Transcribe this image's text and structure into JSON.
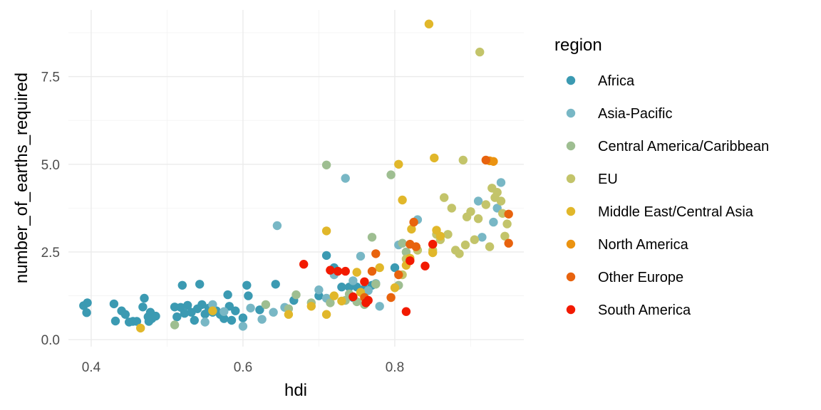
{
  "chart_data": {
    "type": "scatter",
    "title": "",
    "xlabel": "hdi",
    "ylabel": "number_of_earths_required",
    "xlim": [
      0.37,
      0.97
    ],
    "ylim": [
      -0.2,
      9.4
    ],
    "x_ticks": [
      0.4,
      0.6,
      0.8
    ],
    "x_tick_labels": [
      "0.4",
      "0.6",
      "0.8"
    ],
    "y_ticks": [
      0.0,
      2.5,
      5.0,
      7.5
    ],
    "y_tick_labels": [
      "0.0",
      "2.5",
      "5.0",
      "7.5"
    ],
    "grid": true,
    "legend": {
      "title": "region",
      "position": "right"
    },
    "series": [
      {
        "name": "Africa",
        "color": "#3b9ab2",
        "points": [
          [
            0.39,
            0.97
          ],
          [
            0.395,
            1.05
          ],
          [
            0.394,
            0.77
          ],
          [
            0.43,
            1.02
          ],
          [
            0.432,
            0.53
          ],
          [
            0.44,
            0.82
          ],
          [
            0.445,
            0.72
          ],
          [
            0.45,
            0.5
          ],
          [
            0.455,
            0.52
          ],
          [
            0.46,
            0.52
          ],
          [
            0.468,
            0.93
          ],
          [
            0.47,
            1.18
          ],
          [
            0.475,
            0.65
          ],
          [
            0.476,
            0.52
          ],
          [
            0.478,
            0.78
          ],
          [
            0.48,
            0.6
          ],
          [
            0.485,
            0.67
          ],
          [
            0.51,
            0.93
          ],
          [
            0.513,
            0.65
          ],
          [
            0.518,
            0.92
          ],
          [
            0.52,
            1.55
          ],
          [
            0.523,
            0.75
          ],
          [
            0.527,
            0.98
          ],
          [
            0.532,
            0.78
          ],
          [
            0.536,
            0.55
          ],
          [
            0.54,
            0.88
          ],
          [
            0.543,
            1.58
          ],
          [
            0.546,
            1.0
          ],
          [
            0.55,
            0.73
          ],
          [
            0.555,
            0.9
          ],
          [
            0.56,
            0.78
          ],
          [
            0.565,
            0.82
          ],
          [
            0.57,
            0.72
          ],
          [
            0.575,
            0.6
          ],
          [
            0.58,
            1.28
          ],
          [
            0.582,
            0.95
          ],
          [
            0.585,
            0.55
          ],
          [
            0.59,
            0.82
          ],
          [
            0.6,
            0.62
          ],
          [
            0.605,
            1.55
          ],
          [
            0.607,
            1.25
          ],
          [
            0.622,
            0.85
          ],
          [
            0.643,
            1.58
          ],
          [
            0.667,
            1.12
          ],
          [
            0.7,
            1.25
          ],
          [
            0.71,
            2.4
          ],
          [
            0.72,
            2.05
          ],
          [
            0.73,
            1.5
          ],
          [
            0.74,
            1.5
          ],
          [
            0.745,
            1.2
          ],
          [
            0.75,
            1.5
          ],
          [
            0.76,
            1.45
          ],
          [
            0.77,
            1.55
          ],
          [
            0.8,
            2.05
          ]
        ]
      },
      {
        "name": "Asia-Pacific",
        "color": "#78b7c5",
        "points": [
          [
            0.55,
            0.5
          ],
          [
            0.56,
            1.0
          ],
          [
            0.575,
            0.8
          ],
          [
            0.6,
            0.38
          ],
          [
            0.61,
            0.9
          ],
          [
            0.625,
            0.58
          ],
          [
            0.64,
            0.78
          ],
          [
            0.645,
            3.25
          ],
          [
            0.655,
            0.92
          ],
          [
            0.7,
            1.42
          ],
          [
            0.71,
            1.18
          ],
          [
            0.72,
            1.85
          ],
          [
            0.735,
            4.6
          ],
          [
            0.745,
            1.68
          ],
          [
            0.755,
            2.38
          ],
          [
            0.765,
            1.4
          ],
          [
            0.775,
            1.6
          ],
          [
            0.78,
            0.95
          ],
          [
            0.805,
            2.7
          ],
          [
            0.83,
            3.42
          ],
          [
            0.91,
            3.95
          ],
          [
            0.915,
            2.92
          ],
          [
            0.93,
            3.35
          ],
          [
            0.935,
            3.75
          ],
          [
            0.94,
            4.48
          ]
        ]
      },
      {
        "name": "Central America/Caribbean",
        "color": "#9ebe91",
        "points": [
          [
            0.51,
            0.42
          ],
          [
            0.63,
            1.0
          ],
          [
            0.66,
            0.88
          ],
          [
            0.67,
            1.28
          ],
          [
            0.69,
            1.05
          ],
          [
            0.71,
            4.98
          ],
          [
            0.715,
            1.05
          ],
          [
            0.735,
            1.12
          ],
          [
            0.74,
            1.3
          ],
          [
            0.75,
            1.08
          ],
          [
            0.76,
            1.0
          ],
          [
            0.77,
            2.92
          ],
          [
            0.775,
            1.58
          ],
          [
            0.795,
            4.7
          ],
          [
            0.805,
            1.55
          ],
          [
            0.81,
            2.75
          ],
          [
            0.815,
            2.5
          ]
        ]
      },
      {
        "name": "EU",
        "color": "#c3c46a",
        "points": [
          [
            0.81,
            1.85
          ],
          [
            0.815,
            2.3
          ],
          [
            0.82,
            2.25
          ],
          [
            0.83,
            2.55
          ],
          [
            0.85,
            2.55
          ],
          [
            0.855,
            3.0
          ],
          [
            0.86,
            2.85
          ],
          [
            0.865,
            4.05
          ],
          [
            0.87,
            3.0
          ],
          [
            0.875,
            3.75
          ],
          [
            0.88,
            2.55
          ],
          [
            0.885,
            2.45
          ],
          [
            0.89,
            5.12
          ],
          [
            0.893,
            2.7
          ],
          [
            0.895,
            3.5
          ],
          [
            0.9,
            3.65
          ],
          [
            0.905,
            2.85
          ],
          [
            0.91,
            3.45
          ],
          [
            0.912,
            8.2
          ],
          [
            0.92,
            3.85
          ],
          [
            0.925,
            2.65
          ],
          [
            0.928,
            4.32
          ],
          [
            0.932,
            4.05
          ],
          [
            0.935,
            4.2
          ],
          [
            0.94,
            3.95
          ],
          [
            0.942,
            3.6
          ],
          [
            0.945,
            2.95
          ],
          [
            0.948,
            3.3
          ]
        ]
      },
      {
        "name": "Middle East/Central Asia",
        "color": "#e1b72a",
        "points": [
          [
            0.465,
            0.33
          ],
          [
            0.56,
            0.82
          ],
          [
            0.66,
            0.72
          ],
          [
            0.69,
            0.95
          ],
          [
            0.71,
            0.72
          ],
          [
            0.71,
            3.1
          ],
          [
            0.72,
            1.25
          ],
          [
            0.73,
            1.1
          ],
          [
            0.75,
            1.92
          ],
          [
            0.755,
            1.35
          ],
          [
            0.78,
            2.05
          ],
          [
            0.8,
            1.48
          ],
          [
            0.805,
            5.0
          ],
          [
            0.81,
            3.98
          ],
          [
            0.815,
            2.12
          ],
          [
            0.82,
            2.32
          ],
          [
            0.822,
            3.15
          ],
          [
            0.845,
            9.0
          ],
          [
            0.85,
            2.48
          ],
          [
            0.852,
            5.18
          ],
          [
            0.855,
            3.12
          ],
          [
            0.86,
            2.95
          ]
        ]
      },
      {
        "name": "North America",
        "color": "#eb9310",
        "points": [
          [
            0.925,
            5.1
          ],
          [
            0.93,
            5.08
          ]
        ]
      },
      {
        "name": "Other Europe",
        "color": "#e8630e",
        "points": [
          [
            0.76,
            1.2
          ],
          [
            0.77,
            1.95
          ],
          [
            0.775,
            2.45
          ],
          [
            0.795,
            1.2
          ],
          [
            0.805,
            1.85
          ],
          [
            0.82,
            2.72
          ],
          [
            0.825,
            3.35
          ],
          [
            0.828,
            2.65
          ],
          [
            0.92,
            5.12
          ],
          [
            0.95,
            3.58
          ],
          [
            0.95,
            2.75
          ]
        ]
      },
      {
        "name": "South America",
        "color": "#f21a00",
        "points": [
          [
            0.68,
            2.15
          ],
          [
            0.715,
            1.98
          ],
          [
            0.725,
            1.95
          ],
          [
            0.735,
            1.95
          ],
          [
            0.745,
            1.22
          ],
          [
            0.76,
            1.65
          ],
          [
            0.762,
            1.05
          ],
          [
            0.765,
            1.12
          ],
          [
            0.815,
            0.8
          ],
          [
            0.82,
            2.25
          ],
          [
            0.84,
            2.1
          ],
          [
            0.85,
            2.72
          ]
        ]
      }
    ]
  }
}
